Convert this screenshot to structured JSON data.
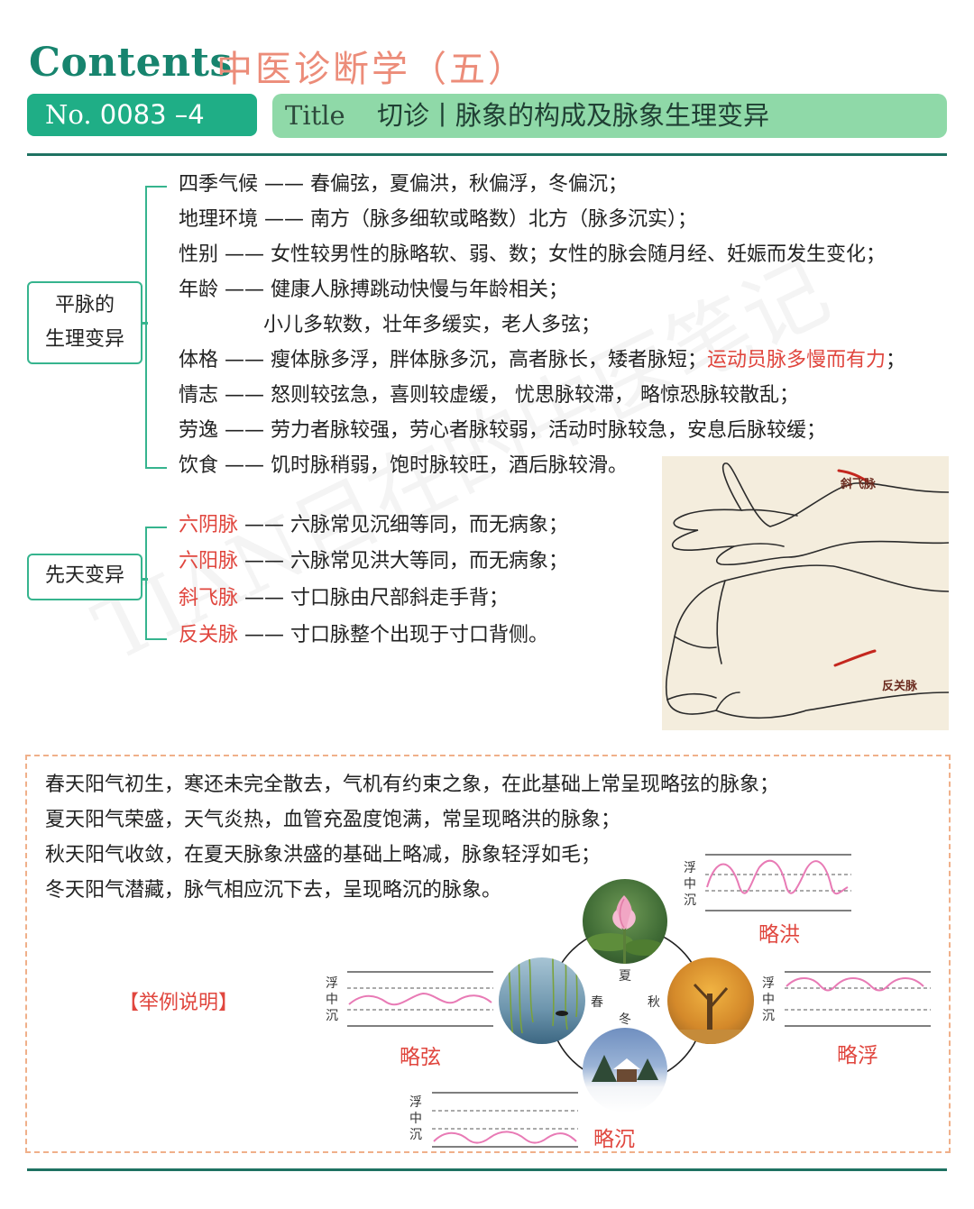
{
  "header": {
    "contents": "Contents",
    "subtitle": "中医诊断学（五）",
    "no_prefix": "No.",
    "no_value": "0083 –4",
    "title_prefix": "Title",
    "title_text": "切诊丨脉象的构成及脉象生理变异"
  },
  "physiology": {
    "label_line1": "平脉的",
    "label_line2": "生理变异",
    "items": [
      {
        "key": "四季气候",
        "text": "春偏弦，夏偏洪，秋偏浮，冬偏沉；"
      },
      {
        "key": "地理环境",
        "text": "南方（脉多细软或略数）北方（脉多沉实）；"
      },
      {
        "key": "性别",
        "text": "女性较男性的脉略软、弱、数；女性的脉会随月经、妊娠而发生变化；"
      },
      {
        "key": "年龄",
        "text": "健康人脉搏跳动快慢与年龄相关；"
      },
      {
        "key": "",
        "text": "小儿多软数，壮年多缓实，老人多弦；"
      },
      {
        "key": "体格",
        "text": "瘦体脉多浮，胖体脉多沉，高者脉长，矮者脉短；",
        "highlight": "运动员脉多慢而有力",
        "tail": "；"
      },
      {
        "key": "情志",
        "text": "怒则较弦急，喜则较虚缓， 忧思脉较滞， 略惊恐脉较散乱；"
      },
      {
        "key": "劳逸",
        "text": "劳力者脉较强，劳心者脉较弱，活动时脉较急，安息后脉较缓；"
      },
      {
        "key": "饮食",
        "text": "饥时脉稍弱，饱时脉较旺，酒后脉较滑。"
      }
    ],
    "dash": "——"
  },
  "congenital": {
    "label": "先天变异",
    "items": [
      {
        "key": "六阴脉",
        "text": "六脉常见沉细等同，而无病象；"
      },
      {
        "key": "六阳脉",
        "text": "六脉常见洪大等同，而无病象；"
      },
      {
        "key": "斜飞脉",
        "text": "寸口脉由尺部斜走手背；"
      },
      {
        "key": "反关脉",
        "text": "寸口脉整个出现于寸口背侧。"
      }
    ]
  },
  "illustration": {
    "label_top": "斜飞脉",
    "label_bottom": "反关脉"
  },
  "watermark": "TIAN目在的中医笔记",
  "seasons_text": {
    "lines": [
      "春天阳气初生，寒还未完全散去，气机有约束之象，在此基础上常呈现略弦的脉象；",
      "夏天阳气荣盛，天气炎热，血管充盈度饱满，常呈现略洪的脉象；",
      "秋天阳气收敛，在夏天脉象洪盛的基础上略减，脉象轻浮如毛；",
      "冬天阳气潜藏，脉气相应沉下去，呈现略沉的脉象。"
    ],
    "example_label": "【举例说明】"
  },
  "diagram": {
    "levels": [
      "浮",
      "中",
      "沉"
    ],
    "seasons": {
      "spring": "春",
      "summer": "夏",
      "autumn": "秋",
      "winter": "冬"
    },
    "waves": {
      "summer": "略洪",
      "spring": "略弦",
      "autumn": "略浮",
      "winter": "略沉"
    },
    "colors": {
      "wave": "#e87ab5",
      "accent_red": "#e0463e",
      "green": "#36b48e"
    }
  }
}
